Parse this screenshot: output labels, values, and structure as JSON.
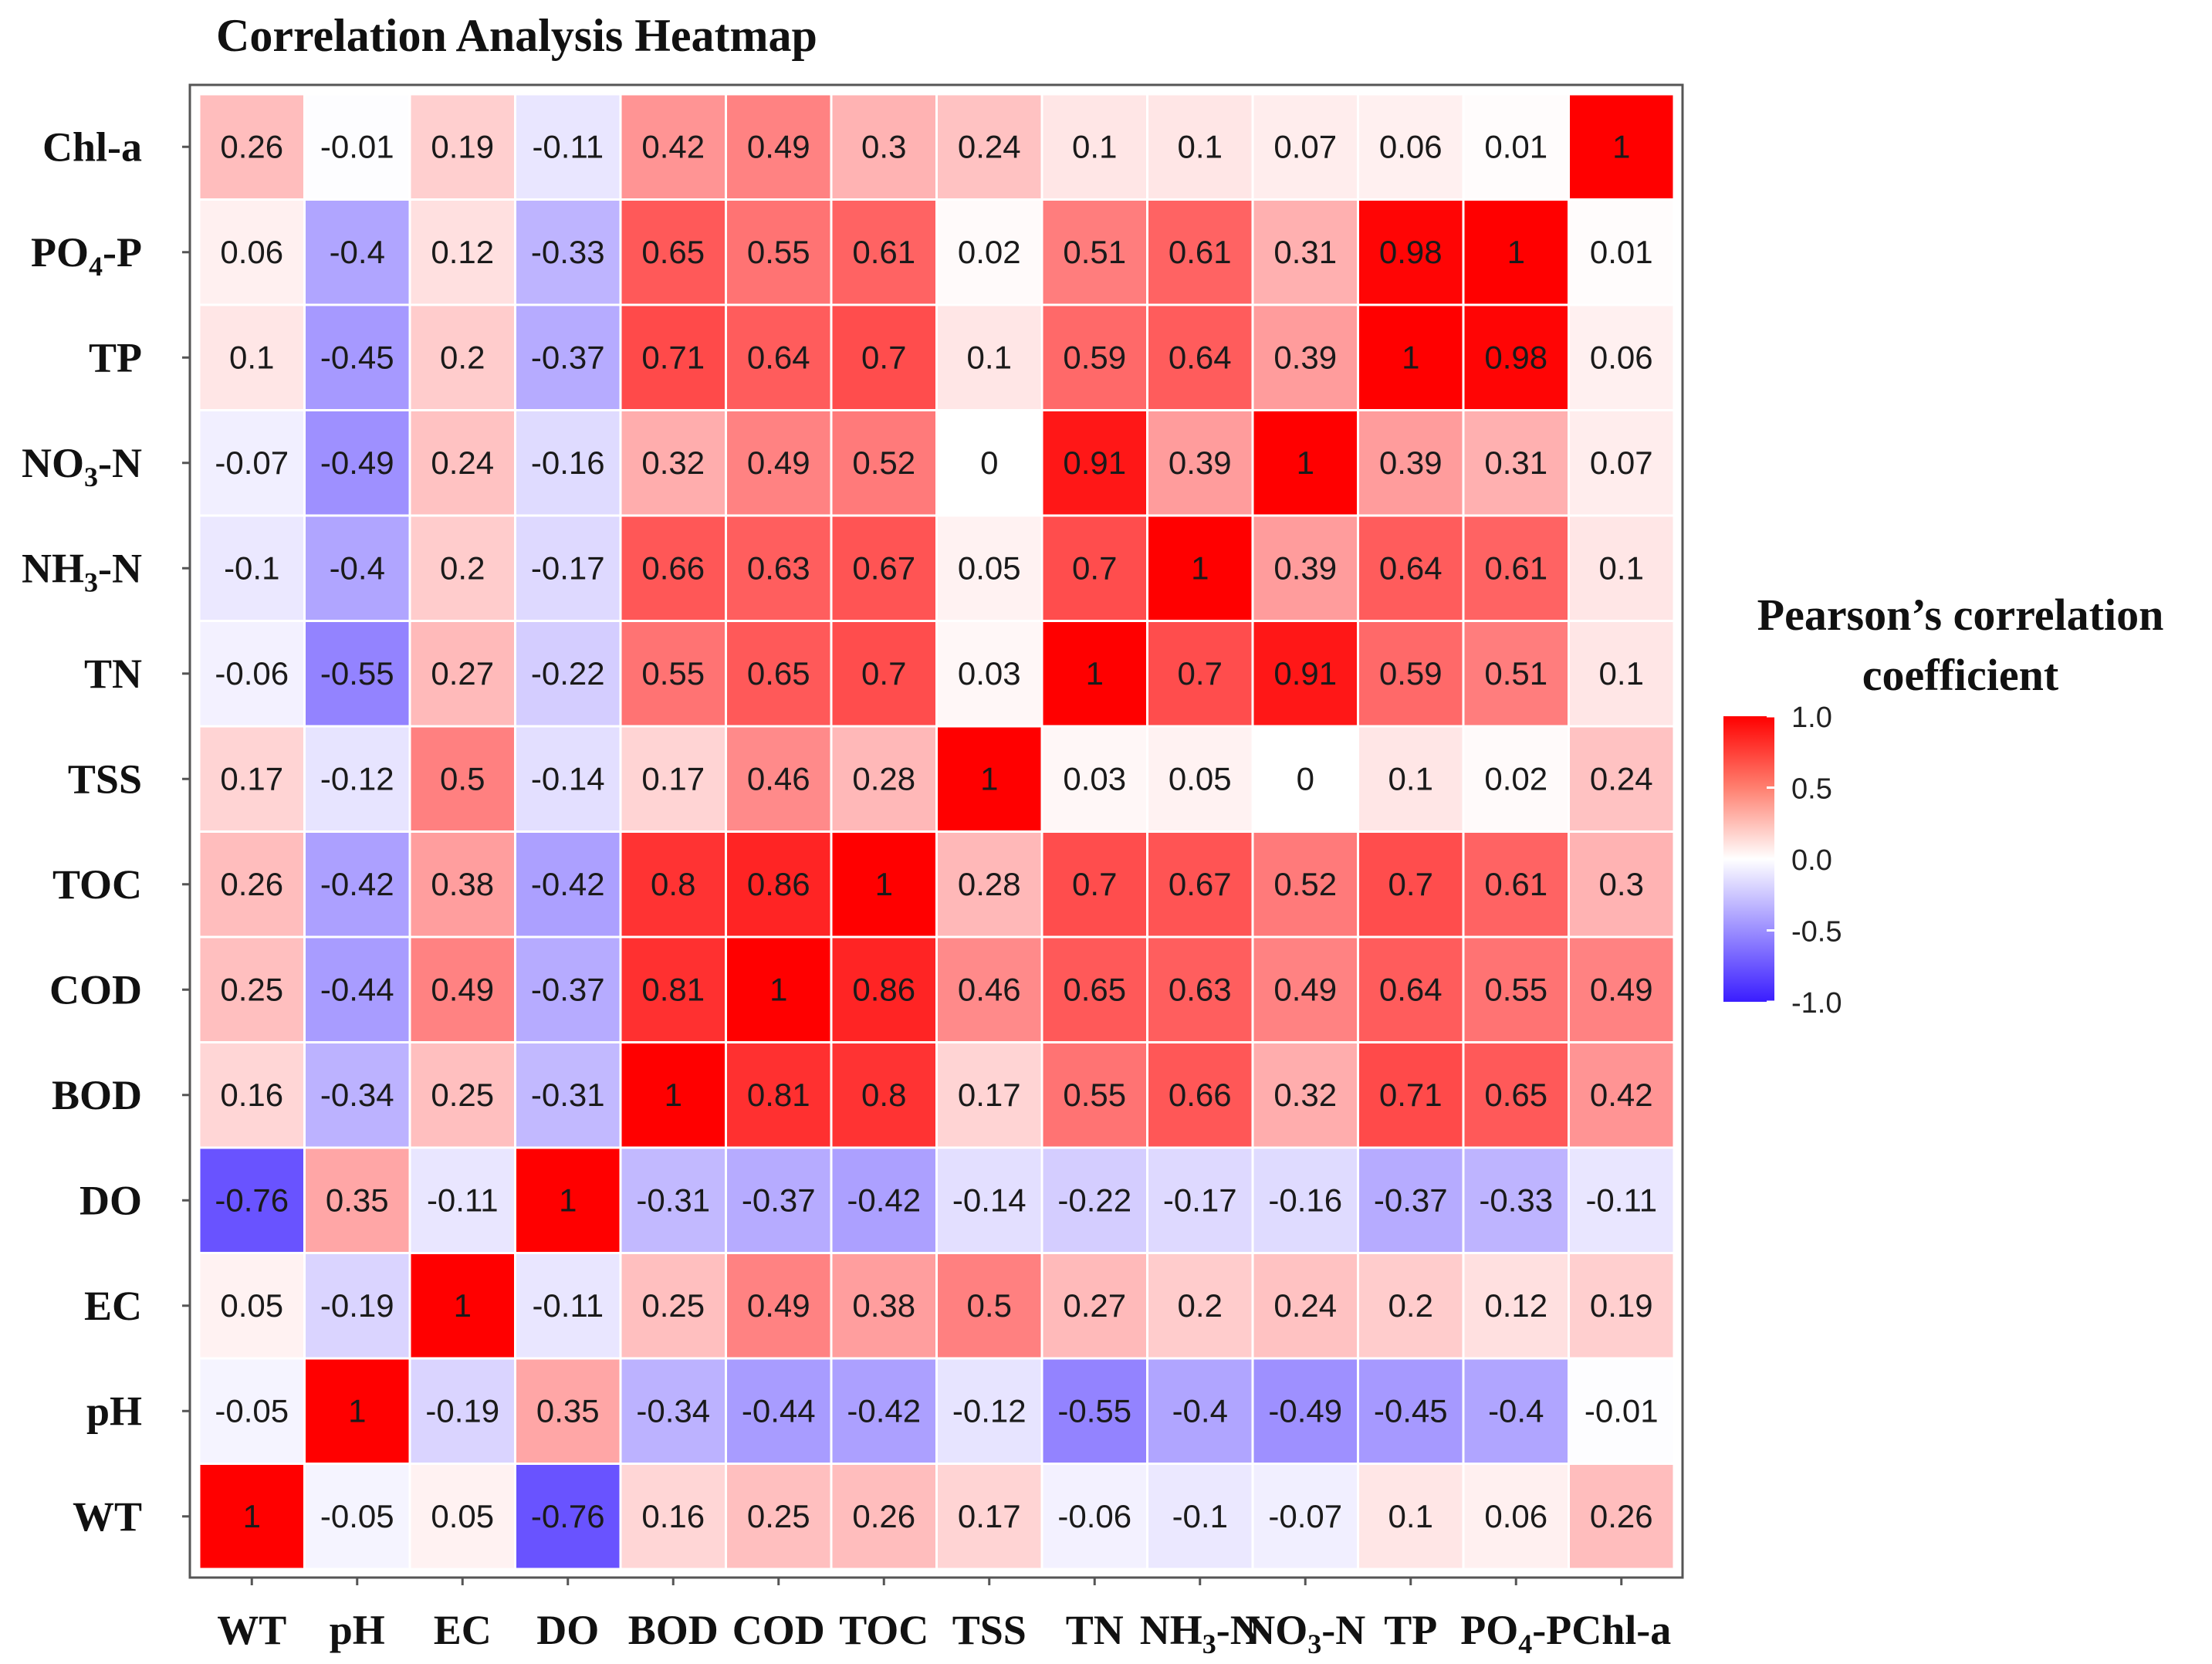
{
  "chart_data": {
    "type": "heatmap",
    "title": "Correlation Analysis Heatmap",
    "x_labels": [
      "WT",
      "pH",
      "EC",
      "DO",
      "BOD",
      "COD",
      "TOC",
      "TSS",
      "TN",
      "NH3-N",
      "NO3-N",
      "TP",
      "PO4-P",
      "Chl-a"
    ],
    "y_labels_top_to_bottom": [
      "Chl-a",
      "PO4-P",
      "TP",
      "NO3-N",
      "NH3-N",
      "TN",
      "TSS",
      "TOC",
      "COD",
      "BOD",
      "DO",
      "EC",
      "pH",
      "WT"
    ],
    "values": [
      [
        0.26,
        -0.01,
        0.19,
        -0.11,
        0.42,
        0.49,
        0.3,
        0.24,
        0.1,
        0.1,
        0.07,
        0.06,
        0.01,
        1
      ],
      [
        0.06,
        -0.4,
        0.12,
        -0.33,
        0.65,
        0.55,
        0.61,
        0.02,
        0.51,
        0.61,
        0.31,
        0.98,
        1,
        0.01
      ],
      [
        0.1,
        -0.45,
        0.2,
        -0.37,
        0.71,
        0.64,
        0.7,
        0.1,
        0.59,
        0.64,
        0.39,
        1,
        0.98,
        0.06
      ],
      [
        -0.07,
        -0.49,
        0.24,
        -0.16,
        0.32,
        0.49,
        0.52,
        0,
        0.91,
        0.39,
        1,
        0.39,
        0.31,
        0.07
      ],
      [
        -0.1,
        -0.4,
        0.2,
        -0.17,
        0.66,
        0.63,
        0.67,
        0.05,
        0.7,
        1,
        0.39,
        0.64,
        0.61,
        0.1
      ],
      [
        -0.06,
        -0.55,
        0.27,
        -0.22,
        0.55,
        0.65,
        0.7,
        0.03,
        1,
        0.7,
        0.91,
        0.59,
        0.51,
        0.1
      ],
      [
        0.17,
        -0.12,
        0.5,
        -0.14,
        0.17,
        0.46,
        0.28,
        1,
        0.03,
        0.05,
        0,
        0.1,
        0.02,
        0.24
      ],
      [
        0.26,
        -0.42,
        0.38,
        -0.42,
        0.8,
        0.86,
        1,
        0.28,
        0.7,
        0.67,
        0.52,
        0.7,
        0.61,
        0.3
      ],
      [
        0.25,
        -0.44,
        0.49,
        -0.37,
        0.81,
        1,
        0.86,
        0.46,
        0.65,
        0.63,
        0.49,
        0.64,
        0.55,
        0.49
      ],
      [
        0.16,
        -0.34,
        0.25,
        -0.31,
        1,
        0.81,
        0.8,
        0.17,
        0.55,
        0.66,
        0.32,
        0.71,
        0.65,
        0.42
      ],
      [
        -0.76,
        0.35,
        -0.11,
        1,
        -0.31,
        -0.37,
        -0.42,
        -0.14,
        -0.22,
        -0.17,
        -0.16,
        -0.37,
        -0.33,
        -0.11
      ],
      [
        0.05,
        -0.19,
        1,
        -0.11,
        0.25,
        0.49,
        0.38,
        0.5,
        0.27,
        0.2,
        0.24,
        0.2,
        0.12,
        0.19
      ],
      [
        -0.05,
        1,
        -0.19,
        0.35,
        -0.34,
        -0.44,
        -0.42,
        -0.12,
        -0.55,
        -0.4,
        -0.49,
        -0.45,
        -0.4,
        -0.01
      ],
      [
        1,
        -0.05,
        0.05,
        -0.76,
        0.16,
        0.25,
        0.26,
        0.17,
        -0.06,
        -0.1,
        -0.07,
        0.1,
        0.06,
        0.26
      ]
    ],
    "color_scale": {
      "min": -1.0,
      "max": 1.0,
      "low_color": "#3a1dff",
      "mid_color": "#ffffff",
      "high_color": "#ff0000"
    },
    "legend": {
      "title_line1": "Pearson’s correlation",
      "title_line2": "coefficient",
      "ticks": [
        "1.0",
        "0.5",
        "0.0",
        "-0.5",
        "-1.0"
      ],
      "tick_values": [
        1.0,
        0.5,
        0.0,
        -0.5,
        -1.0
      ],
      "placement": "right"
    }
  }
}
